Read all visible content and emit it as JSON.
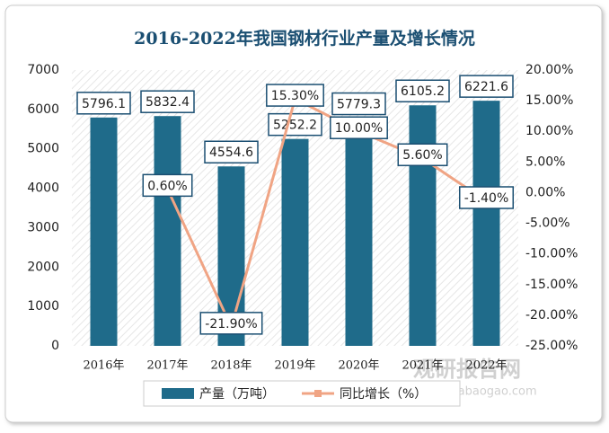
{
  "chart_data": {
    "type": "bar-line",
    "title": "2016-2022年我国钢材行业产量及增长情况",
    "categories": [
      "2016年",
      "2017年",
      "2018年",
      "2019年",
      "2020年",
      "2021年",
      "2022年"
    ],
    "series": [
      {
        "name": "产量（万吨）",
        "type": "bar",
        "color": "#1f6b8a",
        "values": [
          5796.1,
          5832.4,
          4554.6,
          5252.2,
          5779.3,
          6105.2,
          6221.6
        ]
      },
      {
        "name": "同比增长（%）",
        "type": "line",
        "axis": "y2",
        "color": "#f0a484",
        "values": [
          null,
          0.6,
          -21.9,
          15.3,
          10.0,
          5.6,
          -1.4
        ],
        "value_labels": [
          null,
          "0.60%",
          "-21.90%",
          "15.30%",
          "10.00%",
          "5.60%",
          "-1.40%"
        ]
      }
    ],
    "ylim": [
      0,
      7000
    ],
    "yticks": [
      0,
      1000,
      2000,
      3000,
      4000,
      5000,
      6000,
      7000
    ],
    "y2lim": [
      -25,
      20
    ],
    "y2ticks": [
      {
        "value": -25,
        "label": "-25.00%"
      },
      {
        "value": -20,
        "label": "-20.00%"
      },
      {
        "value": -15,
        "label": "-15.00%"
      },
      {
        "value": -10,
        "label": "-10.00%"
      },
      {
        "value": -5,
        "label": "-5.00%"
      },
      {
        "value": 0,
        "label": "0.00%"
      },
      {
        "value": 5,
        "label": "5.00%"
      },
      {
        "value": 10,
        "label": "10.00%"
      },
      {
        "value": 15,
        "label": "15.00%"
      },
      {
        "value": 20,
        "label": "20.00%"
      }
    ],
    "legend": "bottom",
    "watermark": "观研报告网",
    "watermark_url": "chinabaogao.com"
  }
}
